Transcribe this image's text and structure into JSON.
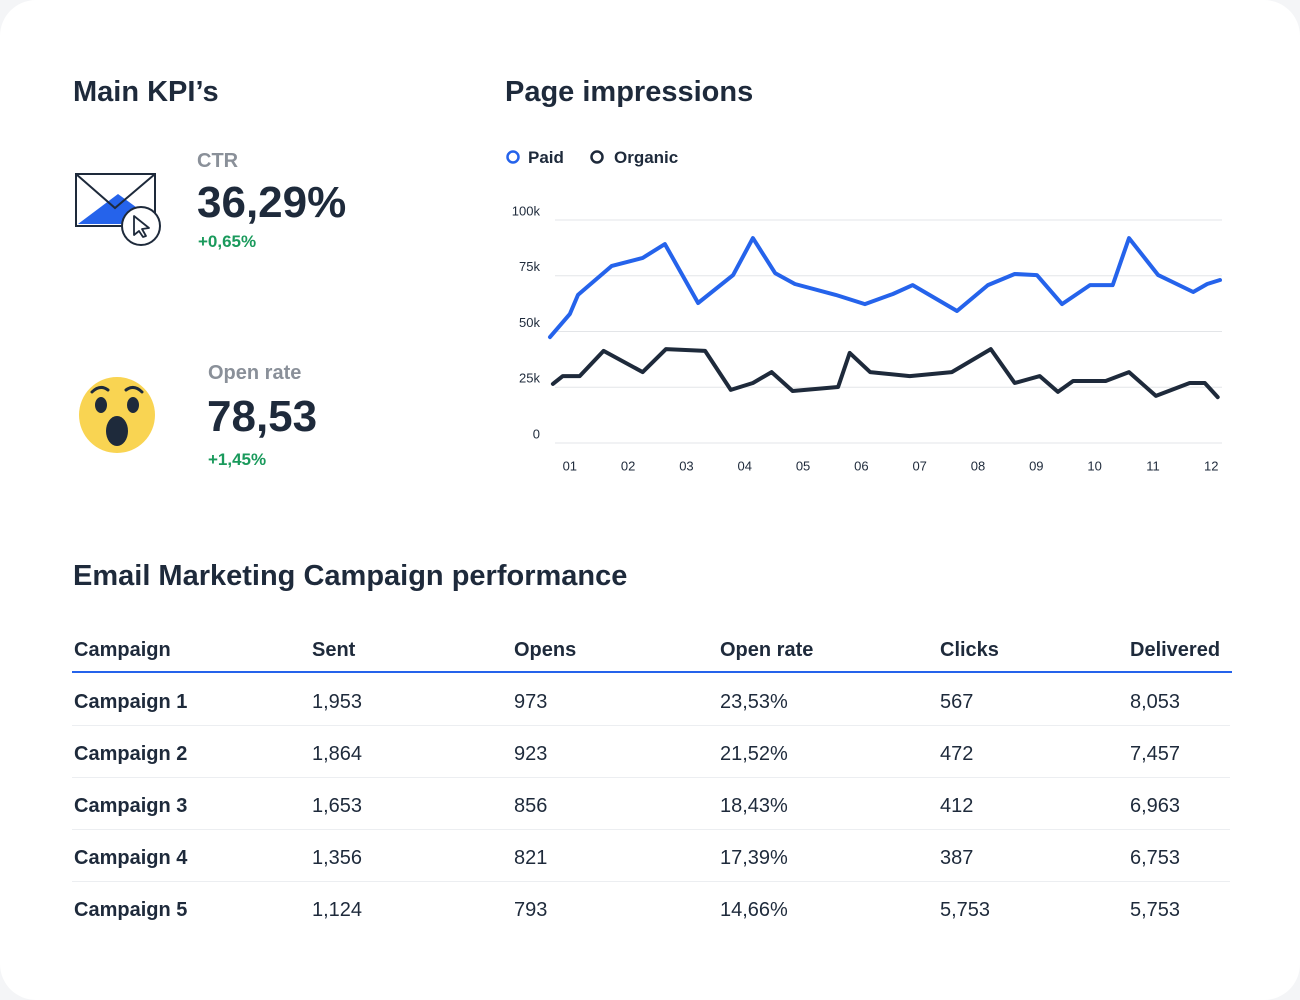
{
  "kpis": {
    "title": "Main KPI’s",
    "items": [
      {
        "label": "CTR",
        "value": "36,29%",
        "change": "+0,65%"
      },
      {
        "label": "Open rate",
        "value": "78,53",
        "change": "+1,45%"
      }
    ]
  },
  "chart_data": {
    "type": "line",
    "title": "Page impressions",
    "series": [
      {
        "name": "Paid",
        "color": "#2563eb",
        "x": [
          0.66,
          1.0,
          1.14,
          1.72,
          2.25,
          2.63,
          3.2,
          3.8,
          4.14,
          4.52,
          4.86,
          5.56,
          6.06,
          6.54,
          6.88,
          7.64,
          8.17,
          8.63,
          9.01,
          9.44,
          9.92,
          10.31,
          10.59,
          11.09,
          11.69,
          11.93,
          12.15
        ],
        "values": [
          47500,
          57800,
          66400,
          79400,
          83000,
          89200,
          62800,
          75300,
          91900,
          76200,
          71300,
          66400,
          62300,
          66800,
          70800,
          59200,
          70800,
          75800,
          75300,
          62300,
          70800,
          70800,
          91900,
          75300,
          67700,
          71300,
          73100
        ]
      },
      {
        "name": "Organic",
        "color": "#1e2a3b",
        "x": [
          0.71,
          0.88,
          1.17,
          1.58,
          2.25,
          2.65,
          3.32,
          3.76,
          4.14,
          4.46,
          4.82,
          5.6,
          5.8,
          6.15,
          6.83,
          7.55,
          8.22,
          8.63,
          9.06,
          9.37,
          9.63,
          10.19,
          10.59,
          11.05,
          11.63,
          11.89,
          12.11
        ],
        "values": [
          26500,
          30000,
          30000,
          41300,
          31800,
          42100,
          41300,
          23800,
          26900,
          31800,
          23300,
          25100,
          40400,
          31800,
          30000,
          31800,
          42100,
          26900,
          30000,
          22900,
          27800,
          27800,
          31800,
          21100,
          26900,
          26900,
          20600
        ]
      }
    ],
    "xlim": [
      0.66,
      12.15
    ],
    "xticks": [
      {
        "value": 1,
        "label": "01"
      },
      {
        "value": 2,
        "label": "02"
      },
      {
        "value": 3,
        "label": "03"
      },
      {
        "value": 4,
        "label": "04"
      },
      {
        "value": 5,
        "label": "05"
      },
      {
        "value": 6,
        "label": "06"
      },
      {
        "value": 7,
        "label": "07"
      },
      {
        "value": 8,
        "label": "08"
      },
      {
        "value": 9,
        "label": "09"
      },
      {
        "value": 10,
        "label": "10"
      },
      {
        "value": 11,
        "label": "11"
      },
      {
        "value": 12,
        "label": "12"
      }
    ],
    "ylim": [
      0,
      100000
    ],
    "yticks": [
      0,
      {
        "value": 25000,
        "label": "25k"
      },
      {
        "value": 50000,
        "label": "50k"
      },
      {
        "value": 75000,
        "label": "75k"
      },
      {
        "value": 100000,
        "label": "100k"
      }
    ],
    "grid": true,
    "legend": "top-left"
  },
  "table": {
    "title": "Email Marketing Campaign performance",
    "columns": [
      "Campaign",
      "Sent",
      "Opens",
      "Open rate",
      "Clicks",
      "Delivered"
    ],
    "rows": [
      [
        "Campaign 1",
        "1,953",
        "973",
        "23,53%",
        "567",
        "8,053"
      ],
      [
        "Campaign 2",
        "1,864",
        "923",
        "21,52%",
        "472",
        "7,457"
      ],
      [
        "Campaign 3",
        "1,653",
        "856",
        "18,43%",
        "412",
        "6,963"
      ],
      [
        "Campaign 4",
        "1,356",
        "821",
        "17,39%",
        "387",
        "6,753"
      ],
      [
        "Campaign 5",
        "1,124",
        "793",
        "14,66%",
        "5,753",
        "5,753"
      ]
    ]
  }
}
